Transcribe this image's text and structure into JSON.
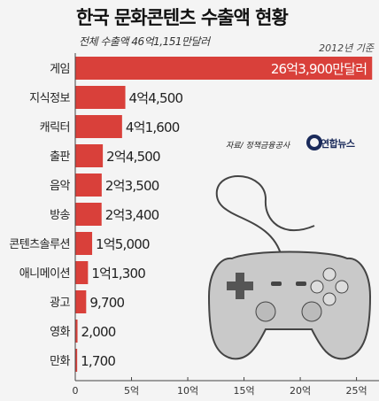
{
  "title": "한국 문화콘텐츠 수출액 현황",
  "subtitle": "전체 수출액 46억1,151만달러",
  "basis": "2012년 기준",
  "source": "자료/ 정책금융공사",
  "logo": {
    "text": "연합뉴스"
  },
  "colors": {
    "bar": "#d9403a",
    "axis": "#444444",
    "grid": "#bbbbbb",
    "gamepad": "#c9c9c9"
  },
  "chart_data": {
    "type": "bar",
    "orientation": "horizontal",
    "unit": "만달러",
    "categories": [
      "게임",
      "지식정보",
      "캐릭터",
      "출판",
      "음악",
      "방송",
      "콘텐츠솔루션",
      "애니메이션",
      "광고",
      "영화",
      "만화"
    ],
    "values": [
      263900,
      44500,
      41600,
      24500,
      23500,
      23400,
      15000,
      11300,
      9700,
      2000,
      1700
    ],
    "value_labels": [
      "26억3,900만달러",
      "4억4,500",
      "4억1,600",
      "2억4,500",
      "2억3,500",
      "2억3,400",
      "1억5,000",
      "1억1,300",
      "9,700",
      "2,000",
      "1,700"
    ],
    "x_ticks": [
      0,
      50000,
      100000,
      150000,
      200000,
      250000
    ],
    "x_tick_labels": [
      "0",
      "5억",
      "10억",
      "15억",
      "20억",
      "25억"
    ],
    "xlim": [
      0,
      270000
    ],
    "grid": false
  }
}
